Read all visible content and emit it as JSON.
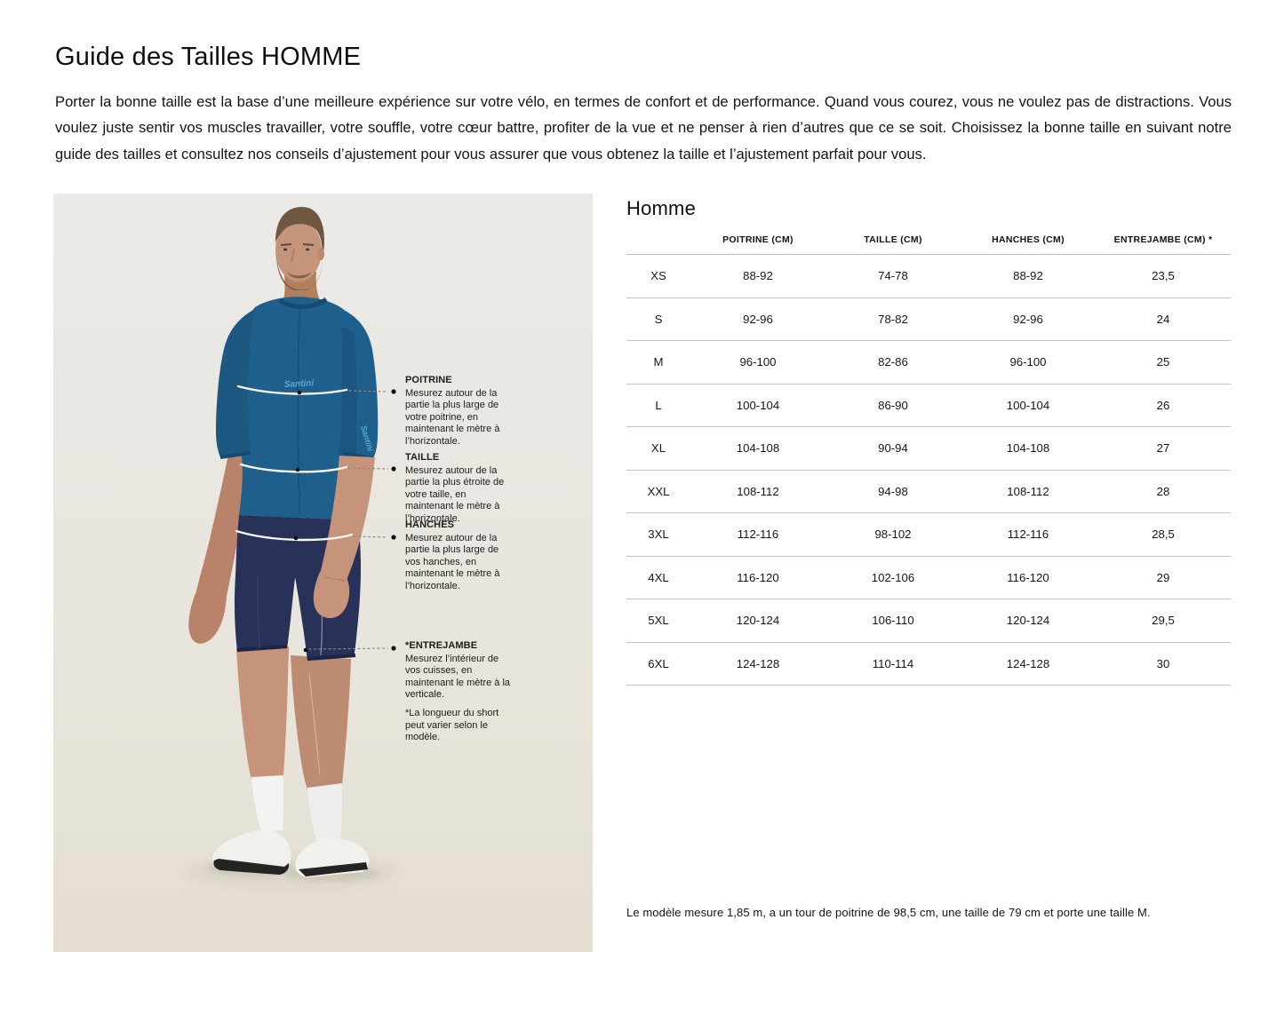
{
  "header": {
    "title": "Guide des Tailles HOMME",
    "intro": "Porter la bonne taille est la base d’une meilleure expérience sur votre vélo, en termes de confort et de performance. Quand vous courez, vous ne voulez pas de distractions. Vous voulez juste sentir vos muscles travailler, votre souffle, votre cœur battre, profiter de la vue et ne penser à rien d’autres que ce se soit. Choisissez la bonne taille en suivant notre guide des tailles et consultez nos conseils d’ajustement pour vous assurer que vous obtenez la taille et l’ajustement parfait pour vous."
  },
  "figure": {
    "brand_logo": "Santini",
    "annotations": [
      {
        "label": "POITRINE",
        "text": "Mesurez autour de la partie la plus large de votre poitrine, en maintenant le mètre à l’horizontale."
      },
      {
        "label": "TAILLE",
        "text": "Mesurez autour de la partie la plus étroite de votre taille, en maintenant le mètre à l’horizontale."
      },
      {
        "label": "HANCHES",
        "text": "Mesurez autour de la partie la plus large de vos hanches, en maintenant le mètre à l’horizontale."
      },
      {
        "label": "*ENTREJAMBE",
        "text": "Mesurez l’intérieur de vos cuisses, en maintenant le mètre à la verticale."
      }
    ],
    "footnote": "*La longueur du short peut varier selon le modèle."
  },
  "table": {
    "title": "Homme",
    "columns": [
      "",
      "POITRINE (CM)",
      "TAILLE (CM)",
      "HANCHES (CM)",
      "ENTREJAMBE (CM) *"
    ],
    "rows": [
      [
        "XS",
        "88-92",
        "74-78",
        "88-92",
        "23,5"
      ],
      [
        "S",
        "92-96",
        "78-82",
        "92-96",
        "24"
      ],
      [
        "M",
        "96-100",
        "82-86",
        "96-100",
        "25"
      ],
      [
        "L",
        "100-104",
        "86-90",
        "100-104",
        "26"
      ],
      [
        "XL",
        "104-108",
        "90-94",
        "104-108",
        "27"
      ],
      [
        "XXL",
        "108-112",
        "94-98",
        "108-112",
        "28"
      ],
      [
        "3XL",
        "112-116",
        "98-102",
        "112-116",
        "28,5"
      ],
      [
        "4XL",
        "116-120",
        "102-106",
        "116-120",
        "29"
      ],
      [
        "5XL",
        "120-124",
        "106-110",
        "120-124",
        "29,5"
      ],
      [
        "6XL",
        "124-128",
        "110-114",
        "124-128",
        "30"
      ]
    ],
    "note": "Le modèle mesure 1,85 m, a un tour de poitrine de 98,5 cm, une taille de 79 cm et porte une taille M."
  },
  "colors": {
    "jersey": "#1f5f8b",
    "shorts": "#283157",
    "logo_blue": "#57a8d8",
    "photo_bg_top": "#ebeae7",
    "photo_bg_bottom": "#e5dfd2",
    "table_line": "#c4c4c4"
  }
}
